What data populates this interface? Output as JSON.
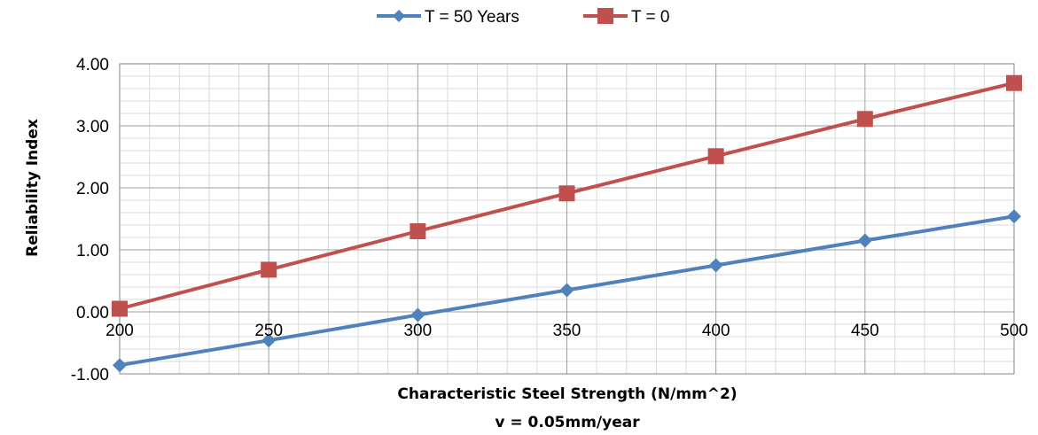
{
  "chart_data": {
    "type": "line",
    "title": "",
    "xlabel": "Characteristic Steel Strength (N/mm^2)",
    "xlabel_line2": "v = 0.05mm/year",
    "ylabel": "Reliability Index",
    "x": [
      200,
      250,
      300,
      350,
      400,
      450,
      500
    ],
    "x_ticks": [
      "200",
      "250",
      "300",
      "350",
      "400",
      "450",
      "500"
    ],
    "xlim": [
      200,
      500
    ],
    "ylim": [
      -1,
      4
    ],
    "y_ticks": [
      "4.00",
      "3.00",
      "2.00",
      "1.00",
      "0.00",
      "-1.00"
    ],
    "y_tick_values": [
      4,
      3,
      2,
      1,
      0,
      -1
    ],
    "grid": true,
    "legend_position": "top-center",
    "series": [
      {
        "name": "T = 50 Years",
        "color": "#4F81BD",
        "marker": "diamond",
        "values": [
          -0.86,
          -0.46,
          -0.05,
          0.35,
          0.75,
          1.15,
          1.54
        ]
      },
      {
        "name": "T = 0",
        "color": "#C0504D",
        "marker": "square",
        "values": [
          0.05,
          0.68,
          1.3,
          1.91,
          2.51,
          3.11,
          3.69
        ]
      }
    ]
  }
}
